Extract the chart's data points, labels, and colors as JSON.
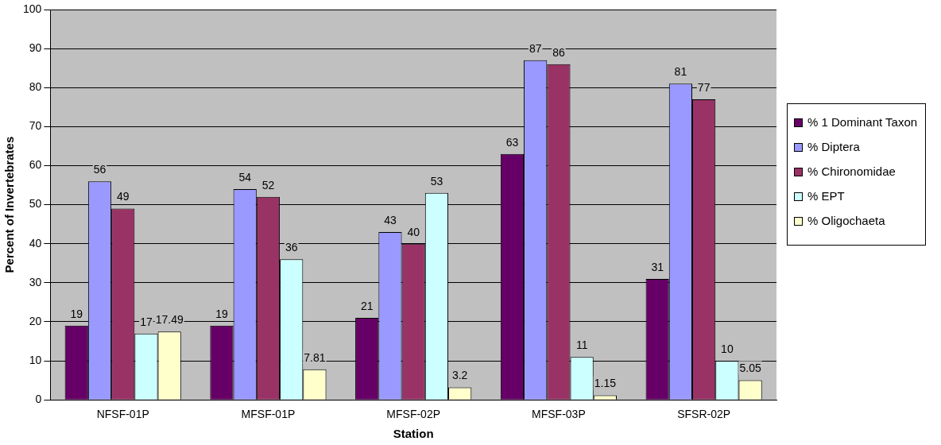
{
  "chart_data": {
    "type": "bar",
    "xlabel": "Station",
    "ylabel": "Percent of Invertebrates",
    "categories": [
      "NFSF-01P",
      "MFSF-01P",
      "MFSF-02P",
      "MFSF-03P",
      "SFSR-02P"
    ],
    "series": [
      {
        "name": "% 1 Dominant Taxon",
        "color": "#660066",
        "values": [
          19,
          19,
          21,
          63,
          31
        ]
      },
      {
        "name": "% Diptera",
        "color": "#9999ff",
        "values": [
          56,
          54,
          43,
          87,
          81
        ]
      },
      {
        "name": "% Chironomidae",
        "color": "#993366",
        "values": [
          49,
          52,
          40,
          86,
          77
        ]
      },
      {
        "name": "% EPT",
        "color": "#ccffff",
        "values": [
          17,
          36,
          53,
          11,
          10
        ]
      },
      {
        "name": "% Oligochaeta",
        "color": "#ffffcc",
        "values": [
          17.49,
          7.81,
          3.2,
          1.15,
          5.05
        ]
      }
    ],
    "ylim": [
      0,
      100
    ],
    "yticks": [
      0,
      10,
      20,
      30,
      40,
      50,
      60,
      70,
      80,
      90,
      100
    ],
    "grid": "y",
    "legend": "right",
    "data_labels": true
  }
}
